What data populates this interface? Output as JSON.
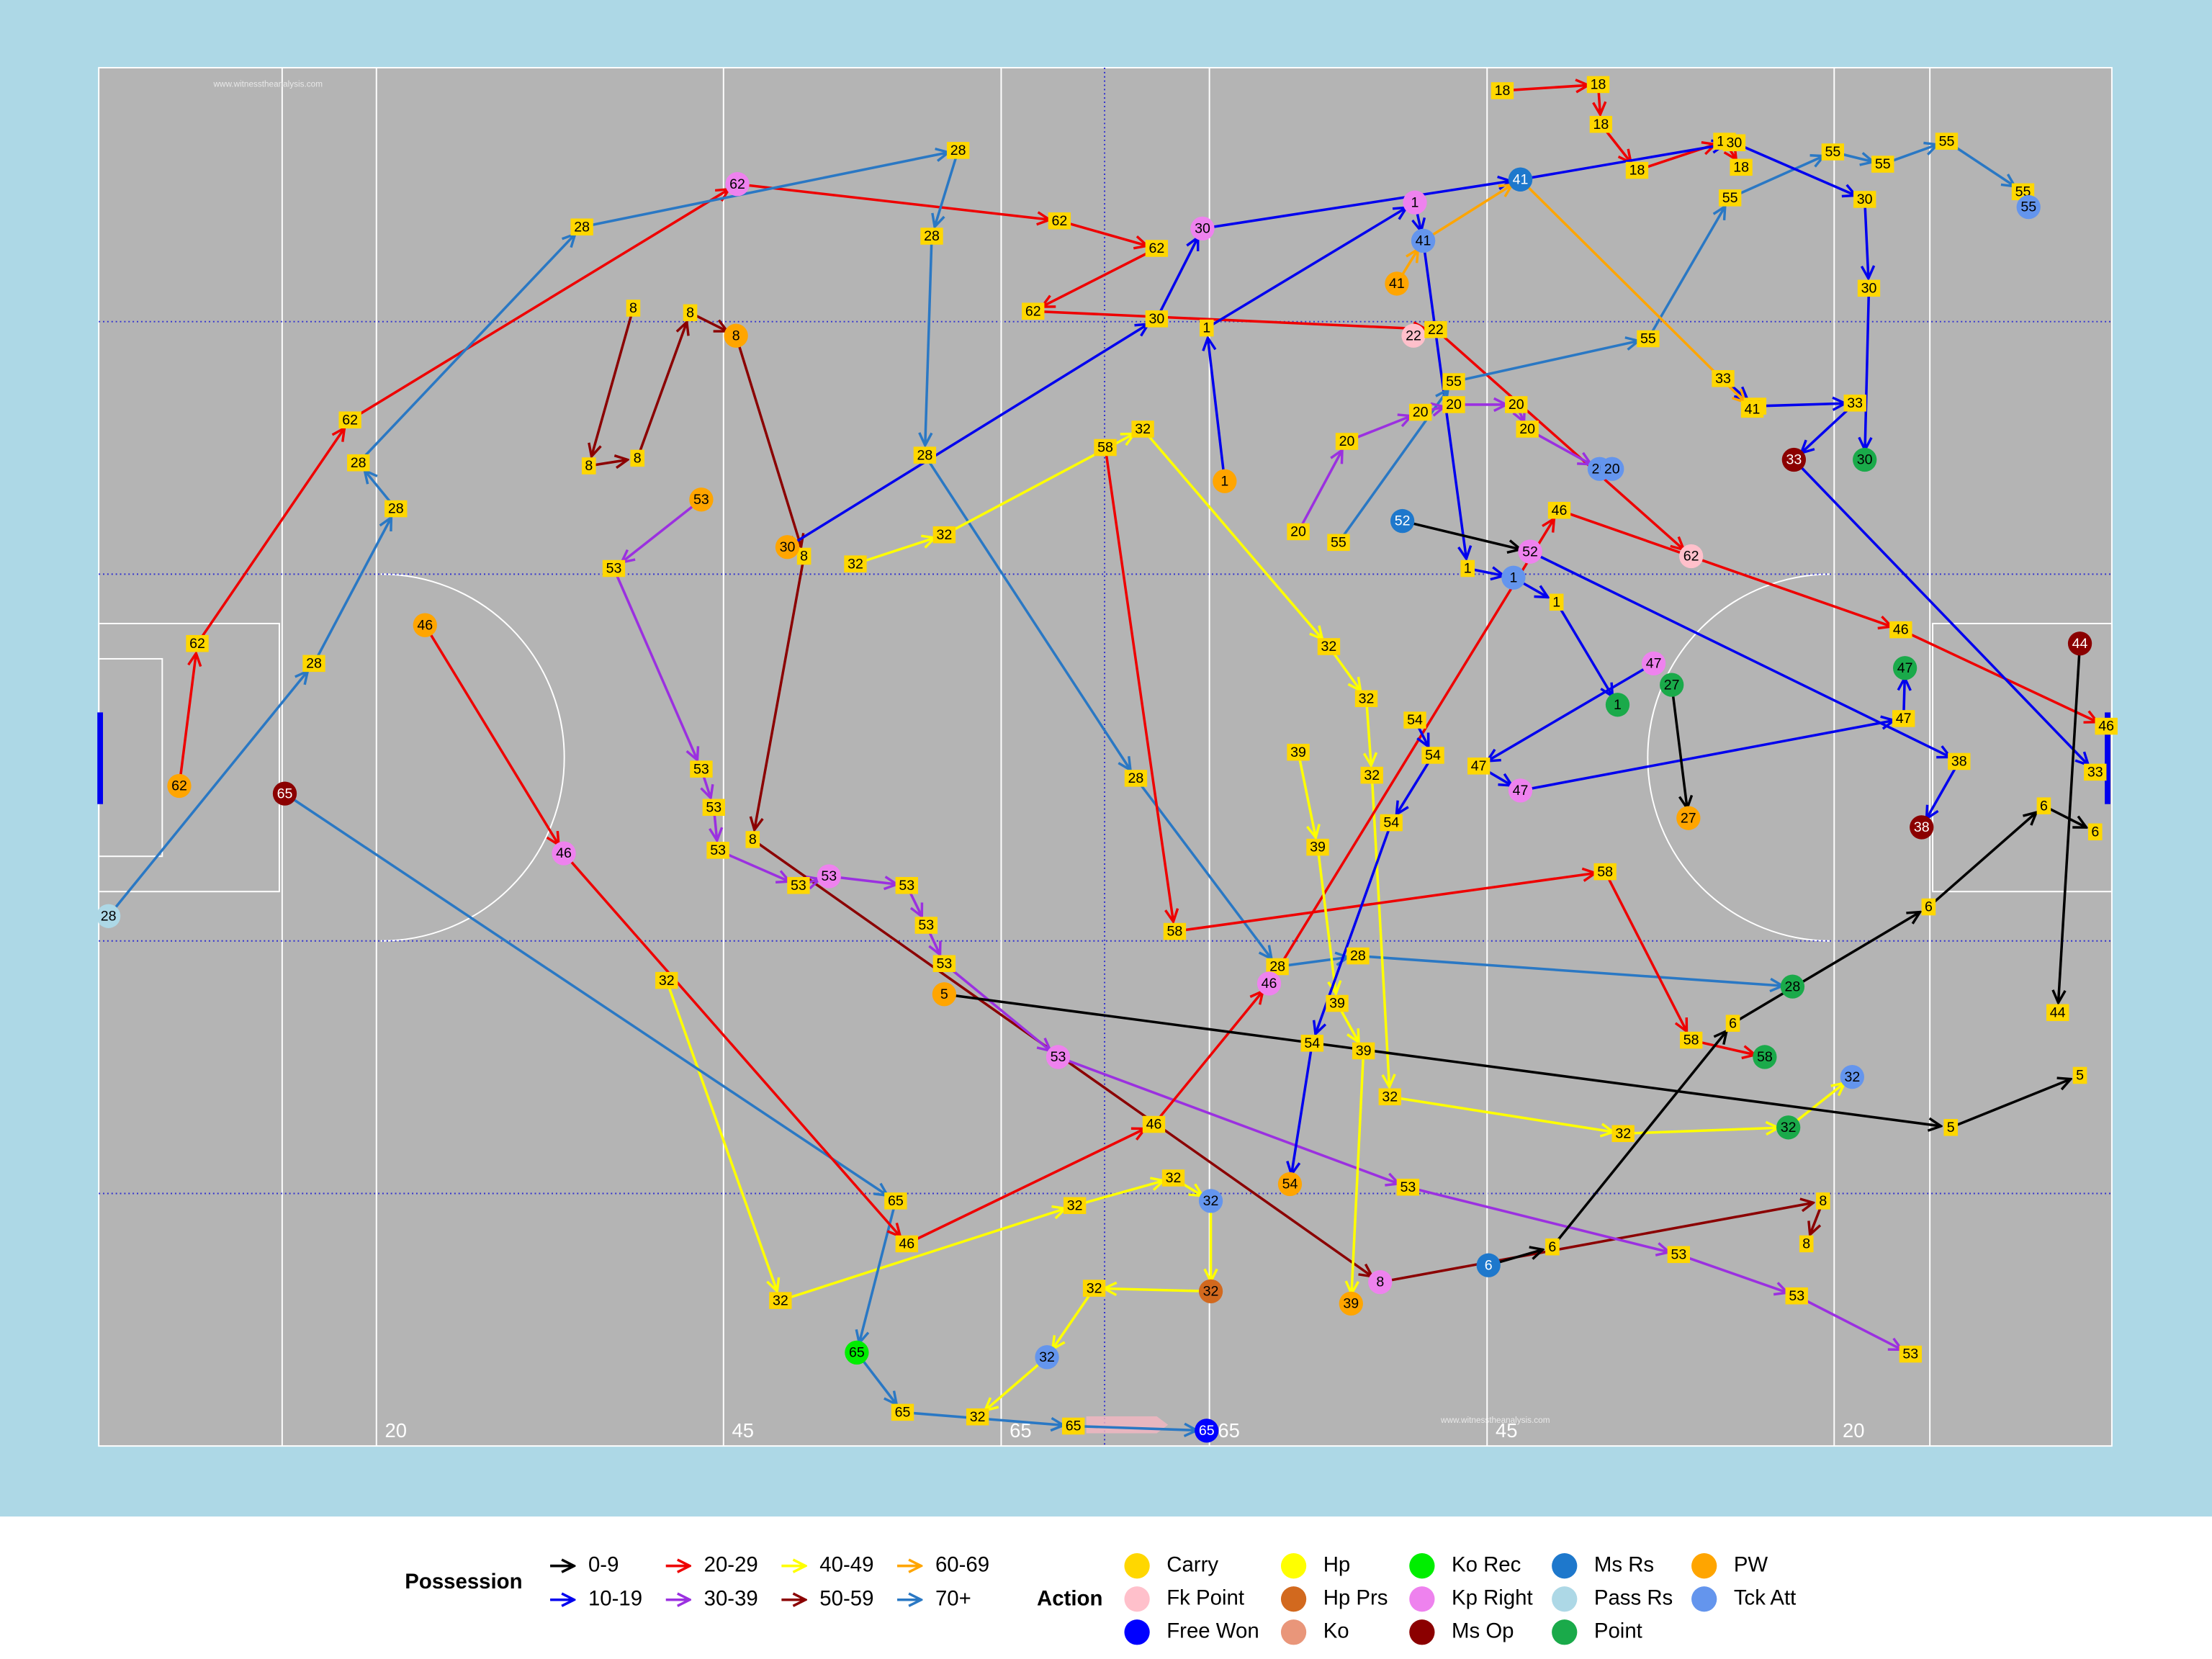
{
  "chart_data": {
    "type": "pitch",
    "xlim": [
      0,
      145
    ],
    "ylim": [
      0,
      90
    ],
    "xticks": [
      20,
      45,
      65,
      {
        "value": 80,
        "label": "65"
      },
      {
        "value": 100,
        "label": "45"
      },
      {
        "value": 125,
        "label": "20"
      }
    ],
    "watermark": "www.witnesstheanalysis.com",
    "possession_legend": {
      "title": "Possession",
      "items": [
        {
          "name": "0-9",
          "color": "#000000"
        },
        {
          "name": "10-19",
          "color": "#0000ee"
        },
        {
          "name": "20-29",
          "color": "#ee0000"
        },
        {
          "name": "30-39",
          "color": "#9b30e0"
        },
        {
          "name": "40-49",
          "color": "#ffff00"
        },
        {
          "name": "50-59",
          "color": "#8b0000"
        },
        {
          "name": "60-69",
          "color": "#ffa500"
        },
        {
          "name": "70+",
          "color": "#2a78c4"
        }
      ]
    },
    "action_legend": {
      "title": "Action",
      "items": [
        {
          "name": "Carry",
          "color": "#ffd700"
        },
        {
          "name": "Fk Point",
          "color": "#ffc0cb"
        },
        {
          "name": "Free Won",
          "color": "#0000ff"
        },
        {
          "name": "Hp",
          "color": "#ffff00"
        },
        {
          "name": "Hp Prs",
          "color": "#d2691e"
        },
        {
          "name": "Ko",
          "color": "#e9967a"
        },
        {
          "name": "Ko Rec",
          "color": "#00ee00"
        },
        {
          "name": "Kp Right",
          "color": "#ee82ee"
        },
        {
          "name": "Ms Op",
          "color": "#8b0000"
        },
        {
          "name": "Ms Rs",
          "color": "#1e78cc"
        },
        {
          "name": "Pass Rs",
          "color": "#add8e6"
        },
        {
          "name": "Point",
          "color": "#1aaa4a"
        },
        {
          "name": "PW",
          "color": "#ffa500"
        },
        {
          "name": "Tck Att",
          "color": "#6495ed"
        }
      ]
    },
    "series": [
      {
        "name": "62",
        "group": "20-29",
        "x": [
          5.8,
          7.1,
          18.1,
          46.0,
          69.2,
          76.2,
          67.3,
          96.3,
          114.7
        ],
        "y": [
          46.9,
          37.6,
          23.0,
          7.6,
          10.0,
          11.8,
          15.9,
          17.1,
          31.9
        ],
        "actions": [
          "PW",
          "Carry",
          "Carry",
          "Kp Right",
          "Carry",
          "Carry",
          "Carry",
          "Carry",
          "Fk Point"
        ]
      },
      {
        "name": "28",
        "group": "70+",
        "x": [
          0.7,
          15.5,
          21.4,
          18.7,
          34.8,
          61.9,
          60.0,
          59.5,
          74.7,
          84.9,
          90.7,
          122.0
        ],
        "y": [
          55.4,
          38.9,
          28.8,
          25.8,
          10.4,
          5.4,
          11.0,
          25.3,
          46.4,
          58.7,
          58.0,
          60.0
        ],
        "actions": [
          "Pass Rs",
          "Carry",
          "Carry",
          "Carry",
          "Carry",
          "Carry",
          "Carry",
          "Carry",
          "Carry",
          "Carry",
          "Carry",
          "Point"
        ]
      },
      {
        "name": "8",
        "group": "50-59",
        "x": [
          38.5,
          35.3,
          38.8,
          42.6,
          45.9,
          50.8,
          47.1,
          92.3,
          124.2,
          123.0
        ],
        "y": [
          15.7,
          26.0,
          25.5,
          16.0,
          17.5,
          31.9,
          50.4,
          79.3,
          74.0,
          76.8
        ],
        "actions": [
          "Carry",
          "Carry",
          "Carry",
          "Carry",
          "PW",
          "Carry",
          "Carry",
          "Kp Right",
          "Carry",
          "Carry"
        ]
      },
      {
        "name": "18",
        "group": "20-29",
        "x": [
          101.1,
          108.0,
          108.2,
          110.8,
          117.1,
          118.3
        ],
        "y": [
          1.5,
          1.1,
          3.7,
          6.7,
          4.8,
          6.5
        ],
        "actions": [
          "Carry",
          "Carry",
          "Carry",
          "Carry",
          "Carry",
          "Carry"
        ]
      },
      {
        "name": "53",
        "group": "30-39",
        "x": [
          43.4,
          37.1,
          43.4,
          44.3,
          44.6,
          50.4,
          52.6,
          58.2,
          59.6,
          60.9,
          69.1,
          94.3,
          113.8,
          122.3,
          130.5
        ],
        "y": [
          28.2,
          32.7,
          45.8,
          48.3,
          51.1,
          53.4,
          52.8,
          53.4,
          56.0,
          58.5,
          64.6,
          73.1,
          77.5,
          80.2,
          84.0
        ],
        "actions": [
          "PW",
          "Carry",
          "Carry",
          "Carry",
          "Carry",
          "Carry",
          "Kp Right",
          "Carry",
          "Carry",
          "Carry",
          "Kp Right",
          "Carry",
          "Carry",
          "Carry",
          "Carry"
        ]
      },
      {
        "name": "32",
        "group": "40-49",
        "x": [
          40.9,
          49.1,
          70.3,
          77.4,
          80.1,
          80.1,
          71.7,
          68.3,
          63.3
        ],
        "y": [
          59.6,
          80.5,
          74.3,
          72.5,
          74.0,
          79.9,
          79.7,
          84.2,
          88.1
        ],
        "actions": [
          "Carry",
          "Carry",
          "Carry",
          "Carry",
          "Tck Att",
          "Hp Prs",
          "Carry",
          "Tck Att",
          "Carry"
        ]
      },
      {
        "name": "32",
        "group": "40-49",
        "x": [
          54.5,
          60.9,
          75.2,
          88.6,
          91.3,
          91.7,
          93.0,
          109.8,
          121.7,
          126.3
        ],
        "y": [
          32.4,
          30.5,
          23.6,
          37.8,
          41.2,
          46.2,
          67.2,
          69.6,
          69.2,
          65.9
        ],
        "actions": [
          "Carry",
          "Carry",
          "Carry",
          "Carry",
          "Carry",
          "Carry",
          "Carry",
          "Carry",
          "Point",
          "Tck Att"
        ]
      },
      {
        "name": "65",
        "group": "70+",
        "x": [
          13.4,
          57.4,
          54.6,
          57.9,
          70.2,
          79.8
        ],
        "y": [
          47.4,
          74.0,
          83.9,
          87.8,
          88.7,
          89.0
        ],
        "actions": [
          "Ms Op",
          "Carry",
          "Ko Rec",
          "Carry",
          "Carry",
          "Free Won"
        ]
      },
      {
        "name": "46",
        "group": "20-29",
        "x": [
          23.5,
          33.5,
          58.2,
          76.0,
          84.3,
          105.2,
          129.8,
          144.6
        ],
        "y": [
          36.4,
          51.3,
          76.8,
          69.0,
          59.8,
          28.9,
          36.7,
          43.0
        ],
        "actions": [
          "PW",
          "Kp Right",
          "Carry",
          "Carry",
          "Kp Right",
          "Carry",
          "Carry",
          "Carry"
        ]
      },
      {
        "name": "58",
        "group": "20-29",
        "x": [
          72.5,
          77.5,
          108.5,
          114.7,
          120.0
        ],
        "y": [
          24.8,
          56.4,
          52.5,
          63.5,
          64.6
        ],
        "actions": [
          "Carry",
          "Carry",
          "Carry",
          "Carry",
          "Point"
        ]
      },
      {
        "name": "1",
        "group": "10-19",
        "x": [
          81.1,
          79.8,
          94.8,
          95.4,
          98.6,
          101.9,
          105.0,
          109.4
        ],
        "y": [
          27.0,
          17.0,
          8.8,
          11.3,
          32.7,
          33.3,
          34.9,
          41.6
        ],
        "actions": [
          "PW",
          "Carry",
          "Kp Right",
          "Tck Att",
          "Carry",
          "Tck Att",
          "Carry",
          "Point"
        ]
      },
      {
        "name": "55",
        "group": "70+",
        "x": [
          89.3,
          97.6,
          111.6,
          117.5,
          124.9,
          128.5,
          133.1,
          138.6,
          139.0
        ],
        "y": [
          31.0,
          20.5,
          17.7,
          8.5,
          5.5,
          6.3,
          4.8,
          8.1,
          9.1
        ],
        "actions": [
          "Carry",
          "Carry",
          "Carry",
          "Carry",
          "Carry",
          "Carry",
          "Carry",
          "Carry",
          "Tck Att"
        ]
      },
      {
        "name": "33",
        "group": "10-19",
        "x": [
          117.0,
          119.3,
          126.5,
          122.1,
          143.8
        ],
        "y": [
          20.3,
          22.1,
          21.9,
          25.6,
          46.0
        ],
        "actions": [
          "Carry",
          "Carry",
          "Carry",
          "Ms Op",
          "Carry"
        ]
      },
      {
        "name": "30",
        "group": "10-19",
        "x": [
          49.6,
          76.2,
          79.5,
          102.4,
          117.8,
          127.2,
          127.5,
          127.2
        ],
        "y": [
          31.3,
          16.4,
          10.5,
          7.3,
          4.9,
          8.6,
          14.4,
          25.6
        ],
        "actions": [
          "PW",
          "Carry",
          "Kp Right",
          "Ms Rs",
          "Carry",
          "Carry",
          "Carry",
          "Point"
        ]
      },
      {
        "name": "47",
        "group": "10-19",
        "x": [
          112.0,
          99.4,
          102.4,
          130.0,
          130.1
        ],
        "y": [
          38.9,
          45.6,
          47.2,
          42.5,
          39.2
        ],
        "actions": [
          "Kp Right",
          "Carry",
          "Kp Right",
          "Carry",
          "Point"
        ]
      },
      {
        "name": "5",
        "group": "0-9",
        "x": [
          60.9,
          133.4,
          142.7
        ],
        "y": [
          60.5,
          69.2,
          65.8
        ],
        "actions": [
          "PW",
          "Carry",
          "Carry"
        ]
      },
      {
        "name": "6",
        "group": "0-9",
        "x": [
          100.1,
          104.7,
          117.7,
          131.8,
          140.1,
          143.8
        ],
        "y": [
          78.2,
          77.0,
          62.4,
          54.8,
          48.2,
          49.9
        ],
        "actions": [
          "Ms Rs",
          "Carry",
          "Carry",
          "Carry",
          "Carry",
          "Carry"
        ]
      },
      {
        "name": "39",
        "group": "40-49",
        "x": [
          86.4,
          87.8,
          89.2,
          91.1,
          90.2
        ],
        "y": [
          44.7,
          50.9,
          61.1,
          64.2,
          80.7
        ],
        "actions": [
          "Carry",
          "Carry",
          "Carry",
          "Carry",
          "PW"
        ]
      },
      {
        "name": "54",
        "group": "10-19",
        "x": [
          94.8,
          96.1,
          93.1,
          87.4,
          85.8
        ],
        "y": [
          42.6,
          44.9,
          49.3,
          63.7,
          72.9
        ],
        "actions": [
          "Carry",
          "Carry",
          "Carry",
          "Carry",
          "PW"
        ]
      },
      {
        "name": "38",
        "group": "10-19",
        "x": [
          103.1,
          134.0,
          131.3
        ],
        "y": [
          31.6,
          45.3,
          49.6
        ],
        "actions": [
          "Kp Right",
          "Carry",
          "Ms Op"
        ]
      },
      {
        "name": "20",
        "group": "30-39",
        "x": [
          86.4,
          89.9,
          95.2,
          97.6,
          102.1,
          102.9,
          108.1,
          109.0
        ],
        "y": [
          30.3,
          24.4,
          22.5,
          22.0,
          22.0,
          23.6,
          26.2,
          26.2
        ],
        "actions": [
          "Carry",
          "Carry",
          "Carry",
          "Carry",
          "Carry",
          "Carry",
          "Tck Att",
          "Tck Att"
        ]
      },
      {
        "name": "41",
        "group": "60-69",
        "x": [
          93.5,
          95.4,
          102.4,
          119.1
        ],
        "y": [
          14.1,
          11.3,
          7.3,
          22.3
        ],
        "actions": [
          "PW",
          "Tck Att",
          "Ms Rs",
          "Carry"
        ]
      },
      {
        "name": "27",
        "group": "0-9",
        "x": [
          113.3,
          114.5
        ],
        "y": [
          40.3,
          49.0
        ],
        "actions": [
          "Point",
          "PW"
        ]
      },
      {
        "name": "52",
        "group": "0-9",
        "x": [
          93.9,
          103.1
        ],
        "y": [
          29.6,
          31.6
        ],
        "actions": [
          "Ms Rs",
          "Kp Right"
        ]
      },
      {
        "name": "44",
        "group": "0-9",
        "x": [
          142.7,
          141.1
        ],
        "y": [
          37.6,
          61.7
        ],
        "actions": [
          "Ms Op",
          "Carry"
        ]
      },
      {
        "name": "22",
        "group": "20-29",
        "x": [
          94.7,
          96.3
        ],
        "y": [
          17.5,
          17.1
        ],
        "actions": [
          "Fk Point",
          "Carry"
        ]
      }
    ]
  }
}
